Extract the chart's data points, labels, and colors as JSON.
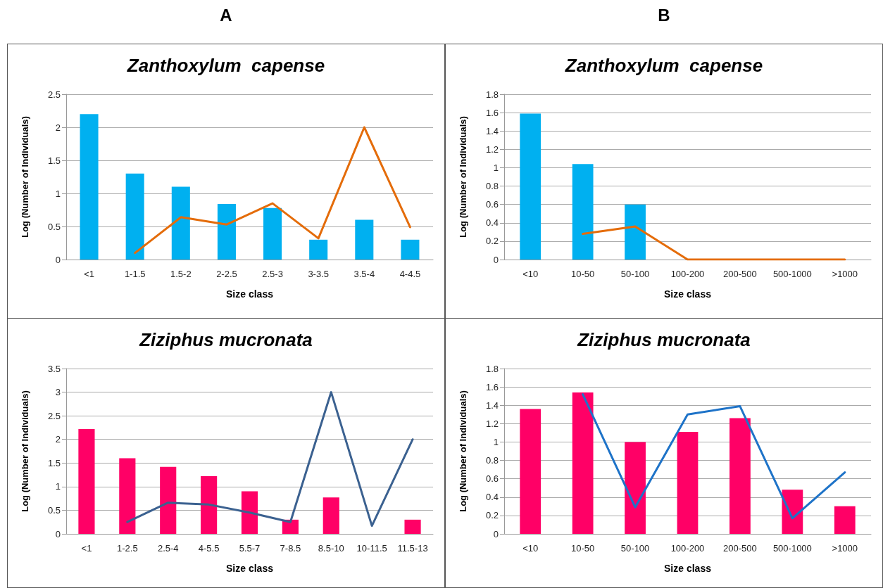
{
  "chart_data": [
    {
      "type": "bar",
      "title": "Zanthoxylum  capense",
      "xlabel": "Size class",
      "ylabel": "Log (Number of Individuals)",
      "annotations": [
        "A"
      ],
      "categories": [
        "<1",
        "1-1.5",
        "1.5-2",
        "2-2.5",
        "2.5-3",
        "3-3.5",
        "3.5-4",
        "4-4.5"
      ],
      "series": [
        {
          "color": "#00b0f0",
          "values": [
            2.2,
            1.3,
            1.1,
            0.84,
            0.78,
            0.3,
            0.6,
            0.3
          ]
        },
        {
          "type": "line",
          "color": "#e46c0a",
          "values": [
            null,
            0.1,
            0.64,
            0.53,
            0.85,
            0.32,
            2.0,
            0.49
          ]
        }
      ],
      "ylim": [
        0,
        2.5
      ],
      "yticks": [
        0,
        0.5,
        1,
        1.5,
        2,
        2.5
      ],
      "grid": "y",
      "marker": "none",
      "line_style": "solid"
    },
    {
      "type": "bar",
      "title": "Zanthoxylum  capense",
      "xlabel": "Size class",
      "ylabel": "Log (Number of Individuals)",
      "annotations": [
        "B"
      ],
      "categories": [
        "<10",
        "10-50",
        "50-100",
        "100-200",
        "200-500",
        "500-1000",
        ">1000"
      ],
      "series": [
        {
          "color": "#00b0f0",
          "values": [
            1.59,
            1.04,
            0.6,
            null,
            null,
            null,
            null
          ]
        },
        {
          "type": "line",
          "color": "#e46c0a",
          "values": [
            null,
            0.28,
            0.36,
            0,
            0,
            0,
            0
          ]
        }
      ],
      "ylim": [
        0,
        1.8
      ],
      "yticks": [
        0,
        0.2,
        0.4,
        0.6,
        0.8,
        1,
        1.2,
        1.4,
        1.6,
        1.8
      ],
      "grid": "y",
      "marker": "none",
      "line_style": "solid"
    },
    {
      "type": "bar",
      "title": "Ziziphus mucronata",
      "xlabel": "Size class",
      "ylabel": "Log (Number of Individuals)",
      "categories": [
        "<1",
        "1-2.5",
        "2.5-4",
        "4-5.5",
        "5.5-7",
        "7-8.5",
        "8.5-10",
        "10-11.5",
        "11.5-13"
      ],
      "series": [
        {
          "color": "#ff0066",
          "values": [
            2.22,
            1.6,
            1.42,
            1.22,
            0.9,
            0.3,
            0.77,
            null,
            0.3
          ]
        },
        {
          "type": "line",
          "color": "#3b6190",
          "values": [
            null,
            0.25,
            0.66,
            0.62,
            0.45,
            0.25,
            3.0,
            0.17,
            2.0
          ]
        }
      ],
      "ylim": [
        0,
        3.5
      ],
      "yticks": [
        0,
        0.5,
        1,
        1.5,
        2,
        2.5,
        3,
        3.5
      ],
      "grid": "y",
      "marker": "none",
      "line_style": "solid"
    },
    {
      "type": "bar",
      "title": "Ziziphus mucronata",
      "xlabel": "Size class",
      "ylabel": "Log (Number of Individuals)",
      "categories": [
        "<10",
        "10-50",
        "50-100",
        "100-200",
        "200-500",
        "500-1000",
        ">1000"
      ],
      "series": [
        {
          "color": "#ff0066",
          "values": [
            1.36,
            1.54,
            1.0,
            1.11,
            1.26,
            0.48,
            0.3
          ]
        },
        {
          "type": "line",
          "color": "#1e73c8",
          "values": [
            null,
            1.52,
            0.29,
            1.3,
            1.39,
            0.17,
            0.67
          ]
        }
      ],
      "ylim": [
        0,
        1.8
      ],
      "yticks": [
        0,
        0.2,
        0.4,
        0.6,
        0.8,
        1,
        1.2,
        1.4,
        1.6,
        1.8
      ],
      "grid": "y",
      "marker": "none",
      "line_style": "solid"
    }
  ]
}
